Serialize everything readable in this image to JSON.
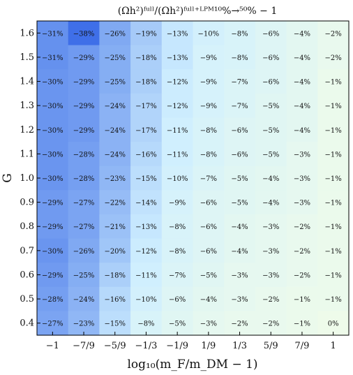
{
  "chart_data": {
    "type": "heatmap",
    "title": "(Ωh²)ᶠᵘˡˡ/(Ωh²)ᶠᵘˡˡ⁺ᴸᴾᴹ¹⁰%→⁵⁰% − 1",
    "xlabel": "log₁₀(m_F/m_DM − 1)",
    "ylabel": "G",
    "x_tick_labels": [
      "−1",
      "−7/9",
      "−5/9",
      "−1/3",
      "−1/9",
      "1/9",
      "1/3",
      "5/9",
      "7/9",
      "1"
    ],
    "x": [
      -1,
      -0.7778,
      -0.5556,
      -0.3333,
      -0.1111,
      0.1111,
      0.3333,
      0.5556,
      0.7778,
      1
    ],
    "y_tick_labels": [
      "1.6",
      "1.5",
      "1.4",
      "1.3",
      "1.2",
      "1.1",
      "1.0",
      "0.9",
      "0.8",
      "0.7",
      "0.6",
      "0.5",
      "0.4"
    ],
    "y": [
      1.6,
      1.5,
      1.4,
      1.3,
      1.2,
      1.1,
      1.0,
      0.9,
      0.8,
      0.7,
      0.6,
      0.5,
      0.4
    ],
    "values": [
      [
        -31,
        -38,
        -26,
        -19,
        -13,
        -10,
        -8,
        -6,
        -4,
        -2
      ],
      [
        -31,
        -29,
        -25,
        -18,
        -13,
        -9,
        -8,
        -6,
        -4,
        -2
      ],
      [
        -30,
        -29,
        -25,
        -18,
        -12,
        -9,
        -7,
        -6,
        -4,
        -1
      ],
      [
        -30,
        -29,
        -24,
        -17,
        -12,
        -9,
        -7,
        -5,
        -4,
        -1
      ],
      [
        -30,
        -29,
        -24,
        -17,
        -11,
        -8,
        -6,
        -5,
        -4,
        -1
      ],
      [
        -30,
        -28,
        -24,
        -16,
        -11,
        -8,
        -6,
        -5,
        -3,
        -1
      ],
      [
        -30,
        -28,
        -23,
        -15,
        -10,
        -7,
        -5,
        -4,
        -3,
        -1
      ],
      [
        -29,
        -27,
        -22,
        -14,
        -9,
        -6,
        -5,
        -4,
        -3,
        -1
      ],
      [
        -29,
        -27,
        -21,
        -13,
        -8,
        -6,
        -4,
        -3,
        -2,
        -1
      ],
      [
        -30,
        -26,
        -20,
        -12,
        -8,
        -6,
        -4,
        -3,
        -2,
        -1
      ],
      [
        -29,
        -25,
        -18,
        -11,
        -7,
        -5,
        -3,
        -3,
        -2,
        -1
      ],
      [
        -28,
        -24,
        -16,
        -10,
        -6,
        -4,
        -3,
        -2,
        -1,
        -1
      ],
      [
        -27,
        -23,
        -15,
        -8,
        -5,
        -3,
        -2,
        -2,
        -1,
        0
      ]
    ],
    "value_suffix": "%",
    "colors": {
      "min": "#3f6fe8",
      "mid": "#cfefff",
      "max": "#eefbea"
    },
    "grid": false
  }
}
